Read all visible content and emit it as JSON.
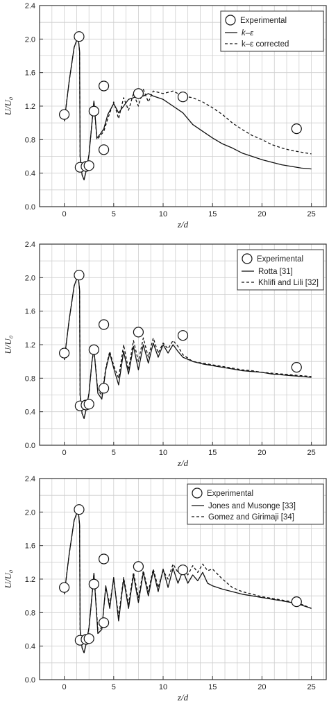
{
  "chart_data": [
    {
      "type": "line",
      "xlabel": "z/d",
      "ylabel": "U/U₀",
      "xlim": [
        -2.5,
        26.5
      ],
      "ylim": [
        0.0,
        2.4
      ],
      "xticks": [
        "0",
        "5",
        "10",
        "15",
        "20",
        "25"
      ],
      "yticks": [
        "0.0",
        "0.4",
        "0.8",
        "1.2",
        "1.6",
        "2.0",
        "2.4"
      ],
      "grid": true,
      "legend": [
        "Experimental",
        "k–ε",
        "k–ε corrected"
      ],
      "legend_position": "top-right",
      "experimental": {
        "name": "Experimental",
        "x": [
          0.0,
          1.5,
          1.6,
          2.2,
          2.5,
          3.0,
          4.0,
          4.0,
          7.5,
          12.0,
          23.5
        ],
        "y": [
          1.1,
          2.03,
          0.47,
          0.48,
          0.49,
          1.14,
          1.44,
          0.68,
          1.35,
          1.31,
          0.93
        ]
      },
      "series": [
        {
          "name": "k–ε",
          "style": "solid",
          "x": [
            0,
            0.5,
            1.0,
            1.4,
            1.55,
            1.6,
            1.8,
            2.0,
            2.2,
            2.5,
            2.8,
            3.0,
            3.3,
            3.6,
            4.0,
            4.4,
            5.0,
            5.5,
            6.0,
            6.5,
            7.0,
            7.5,
            8.0,
            8.5,
            9.0,
            10,
            11,
            12,
            13,
            14,
            15,
            16,
            17,
            18,
            19,
            20,
            21,
            22,
            23,
            24,
            25
          ],
          "y": [
            1.02,
            1.5,
            1.9,
            2.03,
            1.85,
            0.6,
            0.38,
            0.32,
            0.42,
            0.62,
            1.0,
            1.26,
            0.82,
            0.86,
            0.93,
            1.1,
            1.23,
            1.12,
            1.2,
            1.28,
            1.3,
            1.33,
            1.32,
            1.35,
            1.32,
            1.28,
            1.2,
            1.12,
            0.98,
            0.9,
            0.82,
            0.75,
            0.7,
            0.64,
            0.6,
            0.56,
            0.53,
            0.5,
            0.48,
            0.46,
            0.45
          ]
        },
        {
          "name": "k–ε corrected",
          "style": "dashed",
          "x": [
            0,
            0.5,
            1.0,
            1.4,
            1.55,
            1.6,
            1.8,
            2.0,
            2.2,
            2.5,
            2.8,
            3.0,
            3.3,
            3.6,
            4.0,
            4.4,
            5.0,
            5.5,
            6.0,
            6.5,
            7.0,
            7.5,
            8.0,
            8.5,
            9.0,
            10,
            11,
            12,
            13,
            14,
            15,
            16,
            17,
            18,
            19,
            20,
            21,
            22,
            23,
            24,
            25
          ],
          "y": [
            1.02,
            1.5,
            1.9,
            2.03,
            1.85,
            0.6,
            0.38,
            0.32,
            0.42,
            0.62,
            1.0,
            1.26,
            0.8,
            0.84,
            0.9,
            1.05,
            1.25,
            1.05,
            1.3,
            1.15,
            1.35,
            1.2,
            1.4,
            1.25,
            1.38,
            1.35,
            1.38,
            1.32,
            1.3,
            1.25,
            1.18,
            1.1,
            1.0,
            0.92,
            0.85,
            0.8,
            0.74,
            0.7,
            0.67,
            0.65,
            0.63
          ]
        }
      ]
    },
    {
      "type": "line",
      "xlabel": "z/d",
      "ylabel": "U/U₀",
      "xlim": [
        -2.5,
        26.5
      ],
      "ylim": [
        0.0,
        2.4
      ],
      "xticks": [
        "0",
        "5",
        "10",
        "15",
        "20",
        "25"
      ],
      "yticks": [
        "0.0",
        "0.4",
        "0.8",
        "1.2",
        "1.6",
        "2.0",
        "2.4"
      ],
      "grid": true,
      "legend": [
        "Experimental",
        "Rotta [31]",
        "Khlifi and Lili [32]"
      ],
      "legend_position": "top-right",
      "experimental": {
        "name": "Experimental",
        "x": [
          0.0,
          1.5,
          1.6,
          2.2,
          2.5,
          3.0,
          4.0,
          4.0,
          7.5,
          12.0,
          23.5
        ],
        "y": [
          1.1,
          2.03,
          0.47,
          0.48,
          0.49,
          1.14,
          1.44,
          0.68,
          1.35,
          1.31,
          0.93
        ]
      },
      "series": [
        {
          "name": "Rotta [31]",
          "style": "solid",
          "x": [
            0,
            0.5,
            1.0,
            1.4,
            1.55,
            1.6,
            1.8,
            2.0,
            2.2,
            2.5,
            2.8,
            3.0,
            3.4,
            3.8,
            4.2,
            4.6,
            5.0,
            5.5,
            6.0,
            6.5,
            7.0,
            7.5,
            8.0,
            8.5,
            9.0,
            9.5,
            10.0,
            10.5,
            11.0,
            11.5,
            12.0,
            13,
            14,
            15,
            16,
            17,
            18,
            19,
            20,
            21,
            22,
            23,
            24,
            25
          ],
          "y": [
            1.02,
            1.5,
            1.9,
            2.03,
            1.85,
            0.6,
            0.38,
            0.32,
            0.42,
            0.62,
            1.0,
            1.15,
            0.62,
            0.55,
            0.9,
            1.1,
            0.92,
            0.72,
            1.12,
            0.85,
            1.18,
            0.9,
            1.2,
            0.98,
            1.22,
            1.05,
            1.2,
            1.1,
            1.2,
            1.12,
            1.05,
            1.0,
            0.97,
            0.95,
            0.93,
            0.91,
            0.89,
            0.88,
            0.87,
            0.85,
            0.84,
            0.83,
            0.82,
            0.81
          ]
        },
        {
          "name": "Khlifi and Lili [32]",
          "style": "dashed",
          "x": [
            0,
            0.5,
            1.0,
            1.4,
            1.55,
            1.6,
            1.8,
            2.0,
            2.2,
            2.5,
            2.8,
            3.0,
            3.4,
            3.8,
            4.2,
            4.6,
            5.0,
            5.5,
            6.0,
            6.5,
            7.0,
            7.5,
            8.0,
            8.5,
            9.0,
            9.5,
            10.0,
            10.5,
            11.0,
            11.5,
            12.0,
            13,
            14,
            15,
            16,
            17,
            18,
            19,
            20,
            21,
            22,
            23,
            24,
            25
          ],
          "y": [
            1.02,
            1.5,
            1.9,
            2.03,
            1.85,
            0.6,
            0.38,
            0.32,
            0.42,
            0.62,
            1.0,
            1.15,
            0.65,
            0.6,
            0.92,
            1.12,
            0.95,
            0.8,
            1.2,
            0.9,
            1.25,
            1.0,
            1.28,
            1.05,
            1.28,
            1.1,
            1.22,
            1.15,
            1.25,
            1.18,
            1.08,
            1.0,
            0.98,
            0.96,
            0.94,
            0.92,
            0.9,
            0.89,
            0.87,
            0.86,
            0.85,
            0.84,
            0.83,
            0.82
          ]
        }
      ]
    },
    {
      "type": "line",
      "xlabel": "z/d",
      "ylabel": "U/U₀",
      "xlim": [
        -2.5,
        26.5
      ],
      "ylim": [
        0.0,
        2.4
      ],
      "xticks": [
        "0",
        "5",
        "10",
        "15",
        "20",
        "25"
      ],
      "yticks": [
        "0.0",
        "0.4",
        "0.8",
        "1.2",
        "1.6",
        "2.0",
        "2.4"
      ],
      "grid": true,
      "legend": [
        "Experimental",
        "Jones and Musonge [33]",
        "Gomez and Girimaji [34]"
      ],
      "legend_position": "top-right",
      "experimental": {
        "name": "Experimental",
        "x": [
          0.0,
          1.5,
          1.6,
          2.2,
          2.5,
          3.0,
          4.0,
          4.0,
          7.5,
          12.0,
          23.5
        ],
        "y": [
          1.1,
          2.03,
          0.47,
          0.48,
          0.49,
          1.14,
          1.44,
          0.68,
          1.35,
          1.31,
          0.93
        ]
      },
      "series": [
        {
          "name": "Jones and Musonge [33]",
          "style": "solid",
          "x": [
            0,
            0.5,
            1.0,
            1.4,
            1.55,
            1.6,
            1.8,
            2.0,
            2.2,
            2.5,
            2.8,
            3.0,
            3.4,
            3.8,
            4.2,
            4.6,
            5.0,
            5.5,
            6.0,
            6.5,
            7.0,
            7.5,
            8.0,
            8.5,
            9.0,
            9.5,
            10.0,
            10.5,
            11.0,
            11.5,
            12.0,
            12.5,
            13.0,
            13.5,
            14.0,
            14.5,
            15,
            16,
            17,
            18,
            19,
            20,
            21,
            22,
            23,
            24,
            25
          ],
          "y": [
            1.02,
            1.5,
            1.9,
            2.03,
            1.85,
            0.6,
            0.38,
            0.32,
            0.42,
            0.62,
            1.0,
            1.27,
            0.55,
            0.6,
            1.12,
            0.85,
            1.22,
            0.7,
            1.2,
            0.85,
            1.25,
            0.92,
            1.28,
            1.0,
            1.3,
            1.05,
            1.32,
            1.1,
            1.33,
            1.15,
            1.3,
            1.15,
            1.25,
            1.18,
            1.28,
            1.15,
            1.12,
            1.08,
            1.05,
            1.02,
            1.0,
            0.98,
            0.96,
            0.94,
            0.92,
            0.89,
            0.85
          ]
        },
        {
          "name": "Gomez and Girimaji [34]",
          "style": "dashed",
          "x": [
            0,
            0.5,
            1.0,
            1.4,
            1.55,
            1.6,
            1.8,
            2.0,
            2.2,
            2.5,
            2.8,
            3.0,
            3.4,
            3.8,
            4.2,
            4.6,
            5.0,
            5.5,
            6.0,
            6.5,
            7.0,
            7.5,
            8.0,
            8.5,
            9.0,
            9.5,
            10.0,
            10.5,
            11.0,
            11.5,
            12.0,
            12.5,
            13.0,
            13.5,
            14.0,
            14.5,
            15,
            16,
            17,
            18,
            19,
            20,
            21,
            22,
            23,
            24,
            25
          ],
          "y": [
            1.02,
            1.5,
            1.9,
            2.03,
            1.85,
            0.6,
            0.38,
            0.32,
            0.42,
            0.62,
            1.0,
            1.27,
            0.6,
            0.62,
            1.1,
            0.9,
            1.2,
            0.75,
            1.22,
            0.9,
            1.28,
            0.98,
            1.3,
            1.05,
            1.32,
            1.1,
            1.3,
            1.2,
            1.38,
            1.28,
            1.35,
            1.25,
            1.36,
            1.28,
            1.38,
            1.3,
            1.32,
            1.2,
            1.1,
            1.05,
            1.02,
            0.99,
            0.97,
            0.95,
            0.93,
            0.9,
            0.85
          ]
        }
      ]
    }
  ]
}
